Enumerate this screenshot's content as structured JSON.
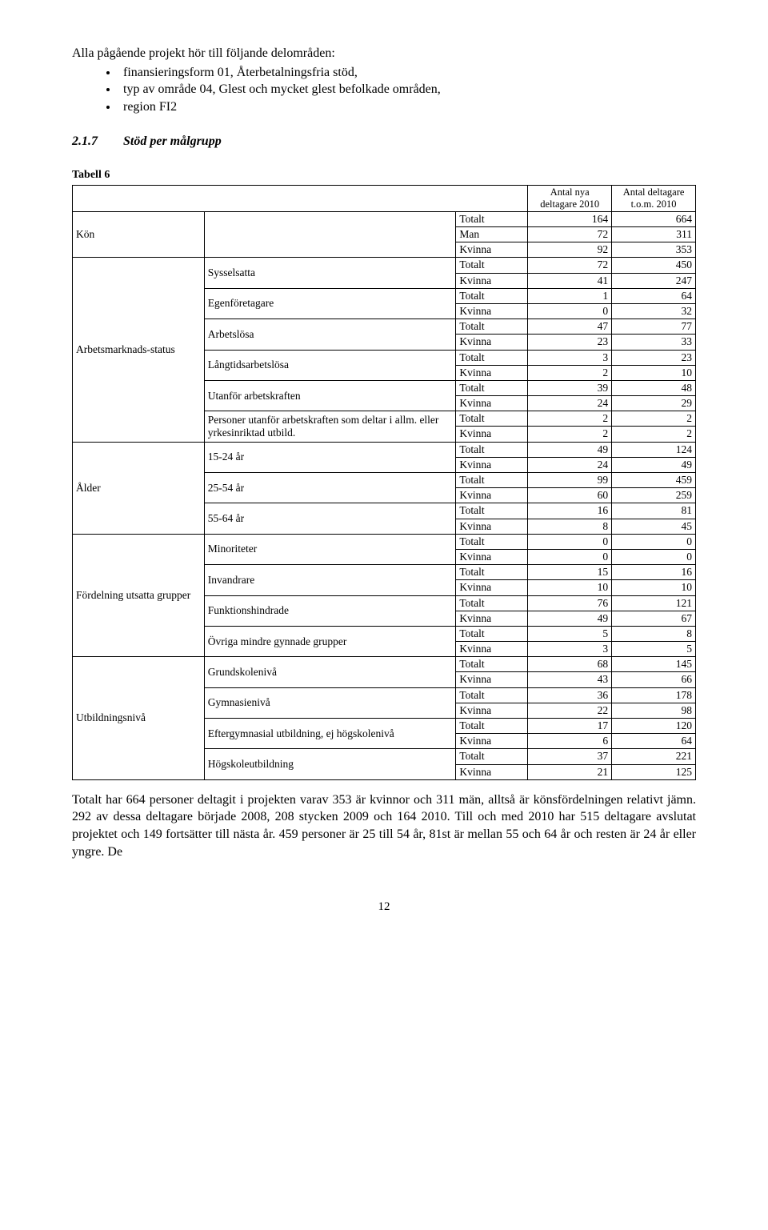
{
  "intro": {
    "lead": "Alla pågående projekt hör till följande delområden:",
    "bullets": [
      "finansieringsform 01, Återbetalningsfria stöd,",
      "typ av område 04, Glest och mycket glest befolkade områden,",
      "region FI2"
    ]
  },
  "section": {
    "num": "2.1.7",
    "title": "Stöd per målgrupp"
  },
  "table": {
    "caption": "Tabell 6",
    "col_headers": {
      "c1": "Antal nya deltagare 2010",
      "c2": "Antal deltagare t.o.m. 2010"
    },
    "tk_labels": {
      "totalt": "Totalt",
      "man": "Man",
      "kvinna": "Kvinna"
    },
    "cat_kon": {
      "label": "Kön",
      "rows": [
        {
          "tk": "Totalt",
          "v1": 164,
          "v2": 664
        },
        {
          "tk": "Man",
          "v1": 72,
          "v2": 311
        },
        {
          "tk": "Kvinna",
          "v1": 92,
          "v2": 353
        }
      ]
    },
    "cat_arb": {
      "label": "Arbetsmarknads-status",
      "subs": [
        {
          "name": "Sysselsatta",
          "tot": {
            "v1": 72,
            "v2": 450
          },
          "kv": {
            "v1": 41,
            "v2": 247
          }
        },
        {
          "name": "Egenföretagare",
          "tot": {
            "v1": 1,
            "v2": 64
          },
          "kv": {
            "v1": 0,
            "v2": 32
          }
        },
        {
          "name": "Arbetslösa",
          "tot": {
            "v1": 47,
            "v2": 77
          },
          "kv": {
            "v1": 23,
            "v2": 33
          }
        },
        {
          "name": "Långtidsarbetslösa",
          "tot": {
            "v1": 3,
            "v2": 23
          },
          "kv": {
            "v1": 2,
            "v2": 10
          }
        },
        {
          "name": "Utanför arbetskraften",
          "tot": {
            "v1": 39,
            "v2": 48
          },
          "kv": {
            "v1": 24,
            "v2": 29
          }
        },
        {
          "name": "Personer utanför arbetskraften som deltar i allm. eller yrkesinriktad utbild.",
          "tot": {
            "v1": 2,
            "v2": 2
          },
          "kv": {
            "v1": 2,
            "v2": 2
          }
        }
      ]
    },
    "cat_alder": {
      "label": "Ålder",
      "subs": [
        {
          "name": "15-24 år",
          "tot": {
            "v1": 49,
            "v2": 124
          },
          "kv": {
            "v1": 24,
            "v2": 49
          }
        },
        {
          "name": "25-54 år",
          "tot": {
            "v1": 99,
            "v2": 459
          },
          "kv": {
            "v1": 60,
            "v2": 259
          }
        },
        {
          "name": "55-64 år",
          "tot": {
            "v1": 16,
            "v2": 81
          },
          "kv": {
            "v1": 8,
            "v2": 45
          }
        }
      ]
    },
    "cat_ford": {
      "label": "Fördelning utsatta grupper",
      "subs": [
        {
          "name": "Minoriteter",
          "tot": {
            "v1": 0,
            "v2": 0
          },
          "kv": {
            "v1": 0,
            "v2": 0
          }
        },
        {
          "name": "Invandrare",
          "tot": {
            "v1": 15,
            "v2": 16
          },
          "kv": {
            "v1": 10,
            "v2": 10
          }
        },
        {
          "name": "Funktionshindrade",
          "tot": {
            "v1": 76,
            "v2": 121
          },
          "kv": {
            "v1": 49,
            "v2": 67
          }
        },
        {
          "name": "Övriga mindre gynnade grupper",
          "tot": {
            "v1": 5,
            "v2": 8
          },
          "kv": {
            "v1": 3,
            "v2": 5
          }
        }
      ]
    },
    "cat_utb": {
      "label": "Utbildningsnivå",
      "subs": [
        {
          "name": "Grundskolenivå",
          "tot": {
            "v1": 68,
            "v2": 145
          },
          "kv": {
            "v1": 43,
            "v2": 66
          }
        },
        {
          "name": "Gymnasienivå",
          "tot": {
            "v1": 36,
            "v2": 178
          },
          "kv": {
            "v1": 22,
            "v2": 98
          }
        },
        {
          "name": "Eftergymnasial utbildning, ej högskolenivå",
          "tot": {
            "v1": 17,
            "v2": 120
          },
          "kv": {
            "v1": 6,
            "v2": 64
          }
        },
        {
          "name": "Högskoleutbildning",
          "tot": {
            "v1": 37,
            "v2": 221
          },
          "kv": {
            "v1": 21,
            "v2": 125
          }
        }
      ]
    }
  },
  "body_para": "Totalt har 664 personer deltagit i projekten varav 353 är kvinnor och 311 män, alltså är könsfördelningen relativt jämn. 292 av dessa deltagare började 2008, 208 stycken 2009 och 164 2010. Till och med 2010 har 515 deltagare avslutat projektet och 149 fortsätter till nästa år. 459 personer är 25 till 54 år, 81st är mellan 55 och 64 år och resten är 24 år eller yngre. De",
  "page_number": "12"
}
